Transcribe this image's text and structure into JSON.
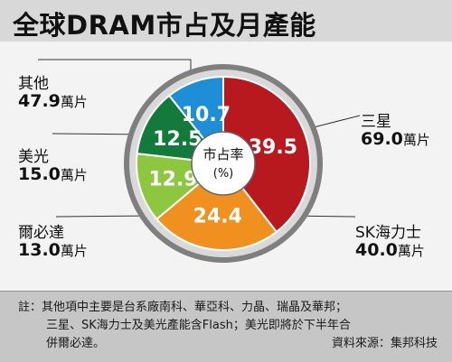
{
  "title": "全球DRAM市占及月產能",
  "center_label": "市占率",
  "center_sublabel": "(%)",
  "unit": "萬片",
  "chart_data": {
    "type": "pie",
    "title": "全球DRAM市占及月產能",
    "slices": [
      {
        "name": "三星",
        "value": 39.5,
        "capacity": "69.0",
        "color": "#b8191f"
      },
      {
        "name": "SK海力士",
        "value": 24.4,
        "capacity": "40.0",
        "color": "#f0901e"
      },
      {
        "name": "爾必達",
        "value": 12.9,
        "capacity": "13.0",
        "color": "#8dc63f"
      },
      {
        "name": "美光",
        "value": 12.5,
        "capacity": "15.0",
        "color": "#127a3a"
      },
      {
        "name": "其他",
        "value": 10.7,
        "capacity": "47.9",
        "color": "#1e8fd6"
      }
    ]
  },
  "labels": {
    "samsung": {
      "name": "三星",
      "capacity": "69.0"
    },
    "hynix": {
      "name": "SK海力士",
      "capacity": "40.0"
    },
    "elpida": {
      "name": "爾必達",
      "capacity": "13.0"
    },
    "micron": {
      "name": "美光",
      "capacity": "15.0"
    },
    "others": {
      "name": "其他",
      "capacity": "47.9"
    }
  },
  "footnote": {
    "line1": "註：其他項中主要是台系廠南科、華亞科、力晶、瑞晶及華邦；",
    "line2": "三星、SK海力士及美光產能含Flash；美光即將於下半年合",
    "line3": "併爾必達。",
    "source": "資料來源：集邦科技"
  }
}
